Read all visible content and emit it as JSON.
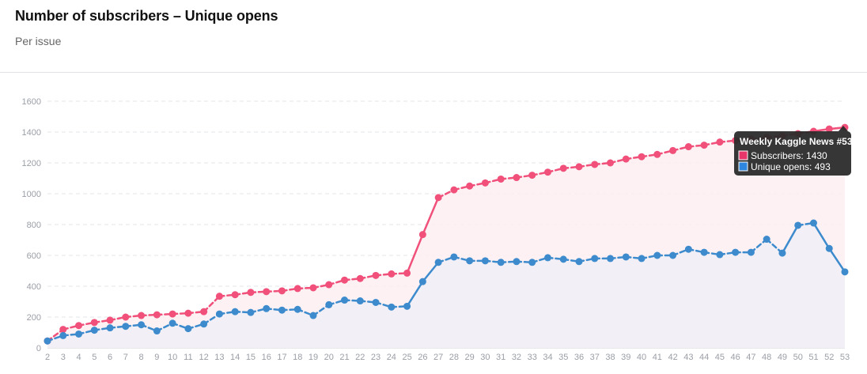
{
  "header": {
    "title": "Number of subscribers – Unique opens",
    "subtitle": "Per issue"
  },
  "chart_data": {
    "type": "line",
    "title": "Number of subscribers – Unique opens",
    "subtitle": "Per issue",
    "xlabel": "",
    "ylabel": "",
    "x": [
      2,
      3,
      4,
      5,
      6,
      7,
      8,
      9,
      10,
      11,
      12,
      13,
      14,
      15,
      16,
      17,
      18,
      19,
      20,
      21,
      22,
      23,
      24,
      25,
      26,
      27,
      28,
      29,
      30,
      31,
      32,
      33,
      34,
      35,
      36,
      37,
      38,
      39,
      40,
      41,
      42,
      43,
      44,
      45,
      46,
      47,
      48,
      49,
      50,
      51,
      52,
      53
    ],
    "ylim": [
      0,
      1600
    ],
    "yticks": [
      0,
      200,
      400,
      600,
      800,
      1000,
      1200,
      1400,
      1600
    ],
    "grid": true,
    "series": [
      {
        "name": "Subscribers",
        "color": "#f0507a",
        "fill": "#fdeef2",
        "values": [
          45,
          120,
          145,
          165,
          180,
          200,
          210,
          215,
          220,
          225,
          235,
          335,
          345,
          360,
          365,
          370,
          385,
          390,
          410,
          440,
          450,
          470,
          480,
          485,
          735,
          975,
          1025,
          1050,
          1070,
          1095,
          1105,
          1120,
          1140,
          1165,
          1175,
          1190,
          1200,
          1225,
          1240,
          1255,
          1280,
          1305,
          1315,
          1335,
          1345,
          1355,
          1365,
          1375,
          1390,
          1405,
          1420,
          1430
        ]
      },
      {
        "name": "Unique opens",
        "color": "#3d8bcd",
        "fill": "#f1f0f6",
        "values": [
          45,
          80,
          90,
          115,
          130,
          140,
          150,
          110,
          160,
          125,
          155,
          220,
          235,
          230,
          255,
          245,
          250,
          210,
          280,
          310,
          305,
          295,
          265,
          270,
          430,
          555,
          590,
          565,
          565,
          555,
          560,
          555,
          585,
          575,
          560,
          580,
          580,
          590,
          580,
          600,
          600,
          640,
          620,
          605,
          620,
          620,
          705,
          615,
          795,
          810,
          645,
          493
        ]
      }
    ],
    "tooltip": {
      "title": "Weekly Kaggle News #53",
      "lines": [
        {
          "label": "Subscribers: 1430",
          "color": "#e8356a"
        },
        {
          "label": "Unique opens: 493",
          "color": "#2e86de"
        }
      ]
    }
  }
}
